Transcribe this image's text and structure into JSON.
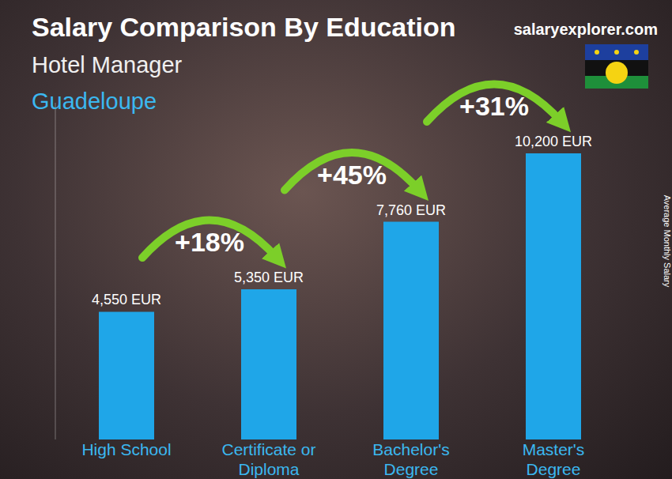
{
  "chart_data": {
    "type": "bar",
    "title": "Salary Comparison By Education",
    "subtitle": "Hotel Manager",
    "location": "Guadeloupe",
    "source": "salaryexplorer.com",
    "ylabel": "Average Monthly Salary",
    "categories": [
      "High School",
      "Certificate or Diploma",
      "Bachelor's Degree",
      "Master's Degree"
    ],
    "values": [
      4550,
      5350,
      7760,
      10200
    ],
    "value_labels": [
      "4,550 EUR",
      "5,350 EUR",
      "7,760 EUR",
      "10,200 EUR"
    ],
    "annotations": [
      "+18%",
      "+45%",
      "+31%"
    ],
    "color": "#1fa6e8",
    "ylim": [
      0,
      12000
    ],
    "grid": false,
    "data_labels": true,
    "tick_labels": "x"
  }
}
